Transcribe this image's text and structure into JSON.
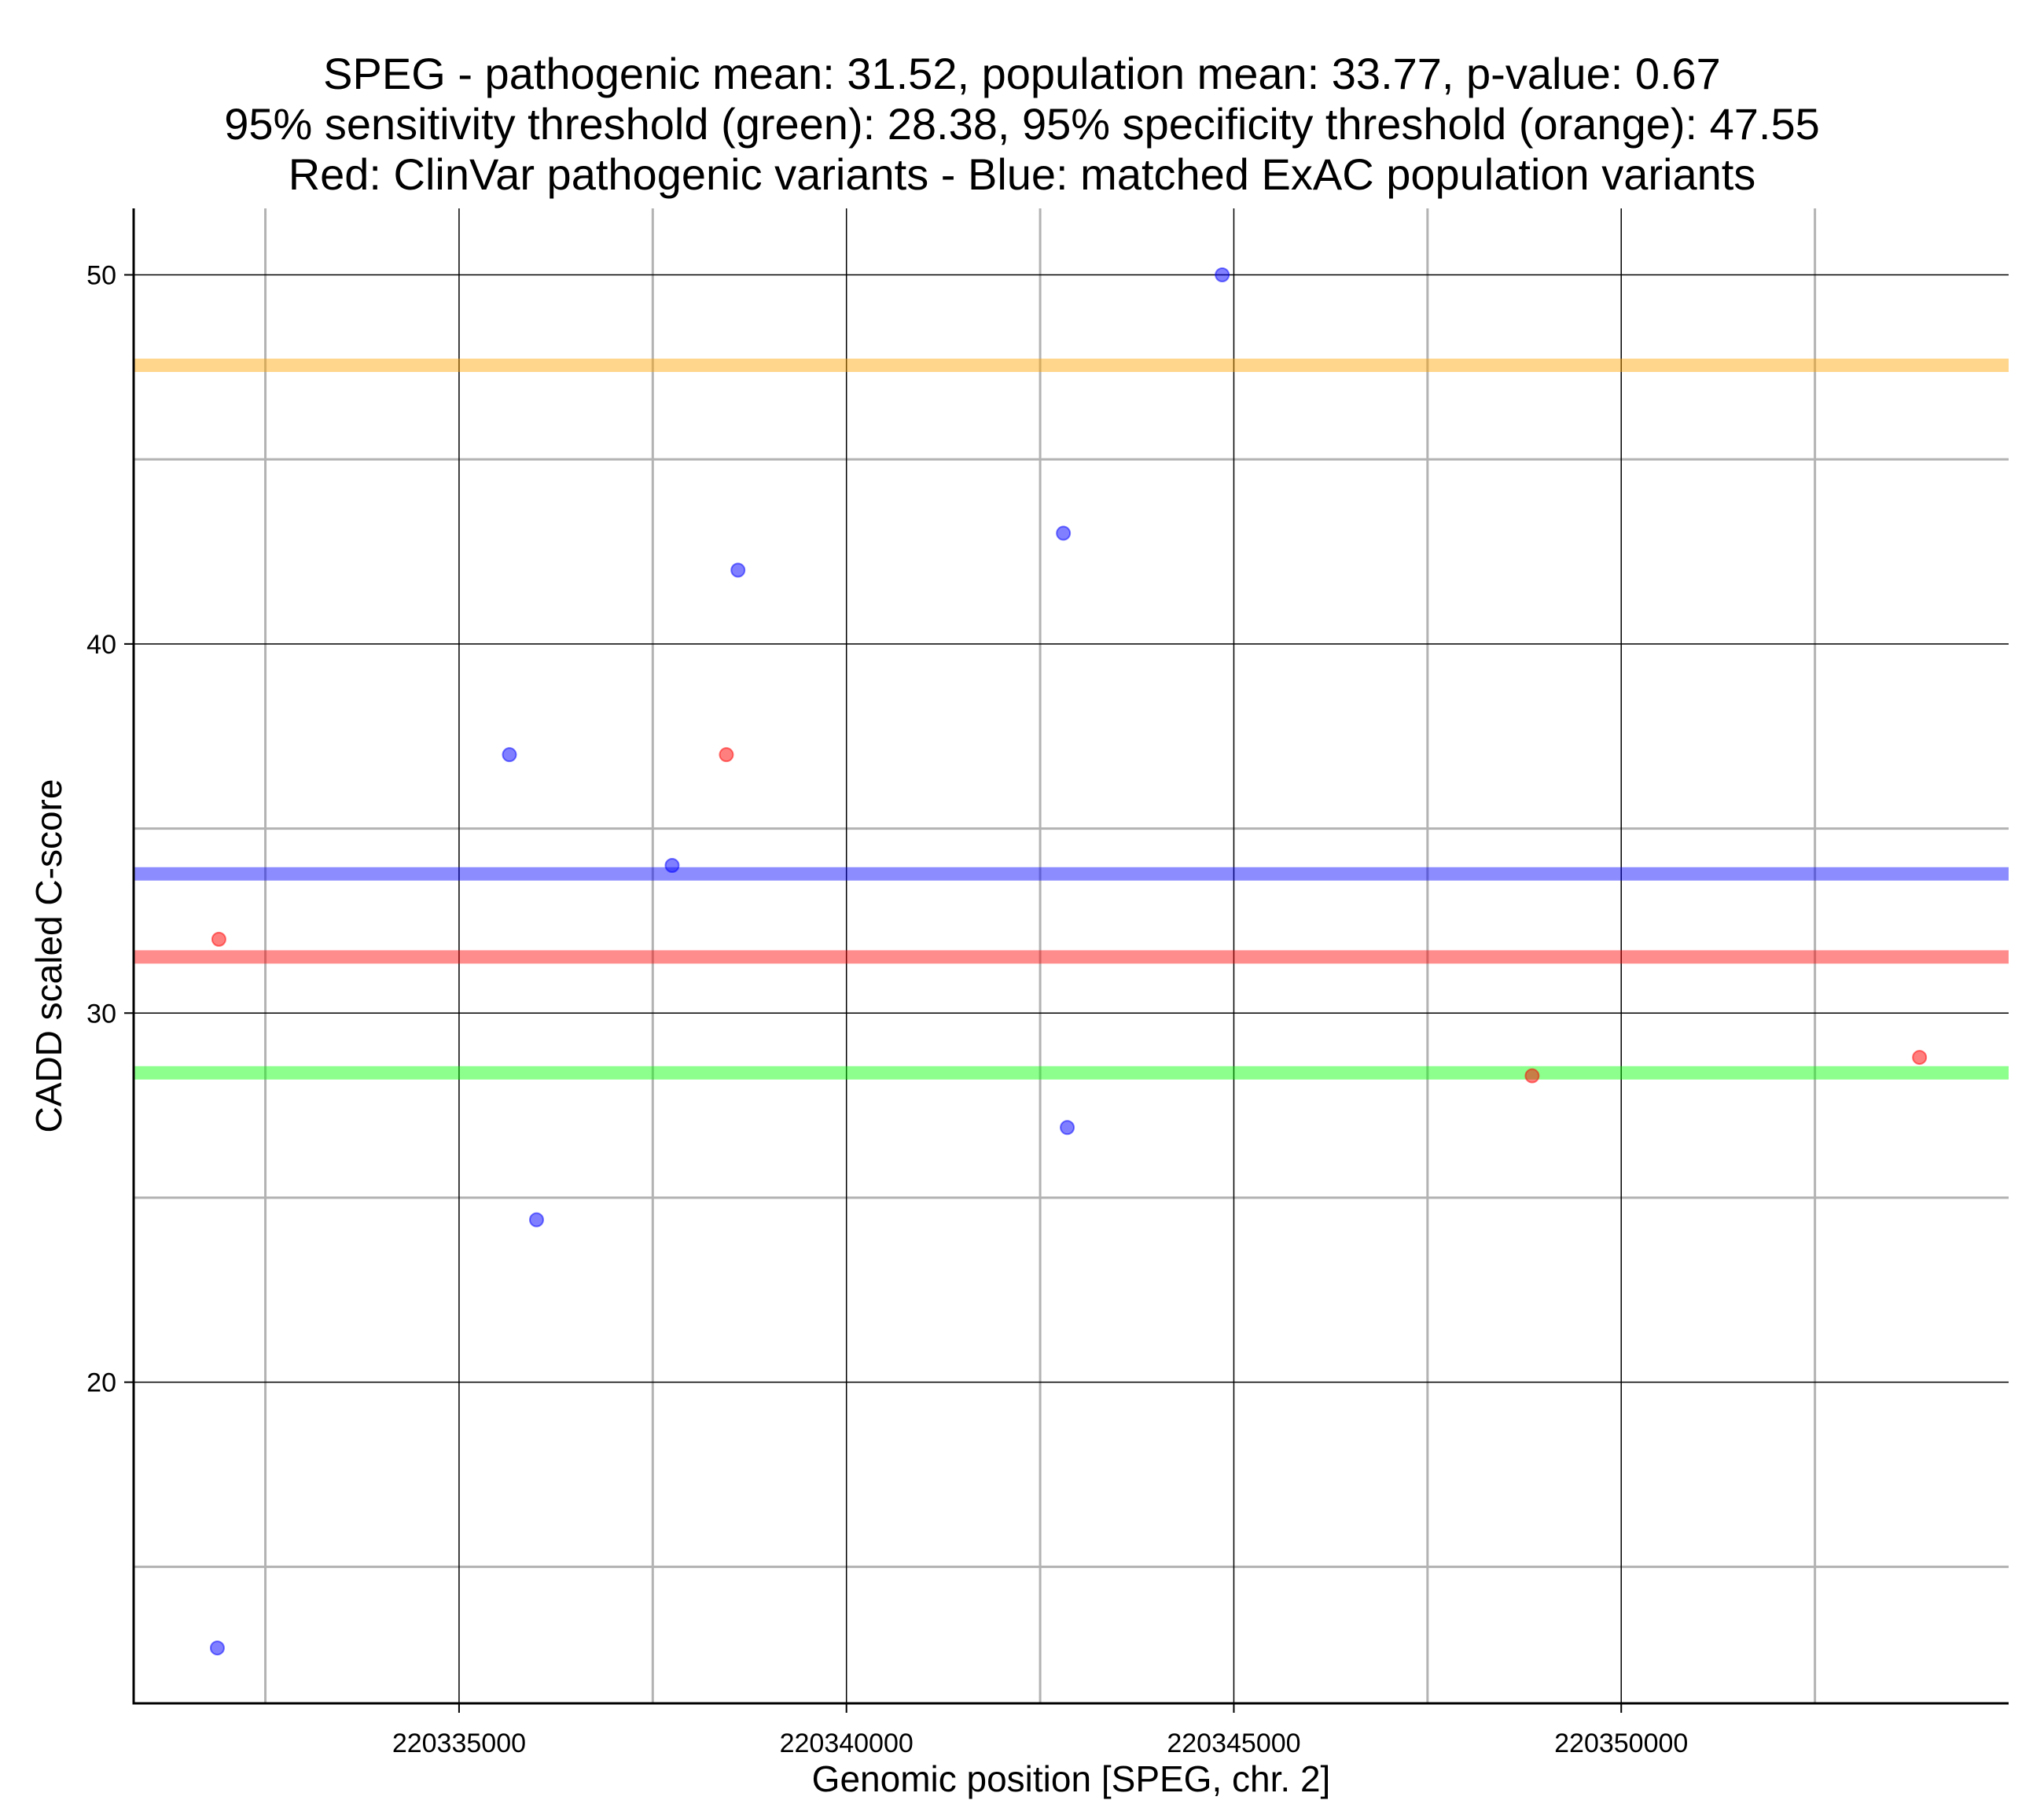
{
  "chart_data": {
    "type": "scatter",
    "title_lines": [
      "SPEG - pathogenic mean: 31.52, population mean: 33.77, p-value: 0.67",
      "95% sensitivity threshold (green): 28.38, 95% specificity threshold (orange): 47.55",
      "Red: ClinVar pathogenic variants - Blue: matched ExAC population variants"
    ],
    "xlabel": "Genomic position [SPEG, chr. 2]",
    "ylabel": "CADD scaled C-score",
    "xlim": [
      220330800,
      220355000
    ],
    "ylim": [
      11.3,
      51.8
    ],
    "x_ticks": [
      220335000,
      220340000,
      220345000,
      220350000
    ],
    "x_tick_labels": [
      "220335000",
      "220340000",
      "220345000",
      "220350000"
    ],
    "x_minor_gridlines": [
      220332500,
      220337500,
      220342500,
      220347500,
      220352500
    ],
    "y_ticks": [
      20,
      30,
      40,
      50
    ],
    "y_tick_labels": [
      "20",
      "30",
      "40",
      "50"
    ],
    "y_minor_gridlines": [
      15,
      25,
      35,
      45
    ],
    "grid": true,
    "series": [
      {
        "name": "ClinVar pathogenic variants",
        "color": "#ff0000",
        "points": [
          {
            "x": 220331900,
            "y": 32.0
          },
          {
            "x": 220338450,
            "y": 37.0
          },
          {
            "x": 220348850,
            "y": 28.3
          },
          {
            "x": 220353850,
            "y": 28.8
          }
        ]
      },
      {
        "name": "matched ExAC population variants",
        "color": "#0000ff",
        "points": [
          {
            "x": 220331880,
            "y": 12.8
          },
          {
            "x": 220335650,
            "y": 37.0
          },
          {
            "x": 220336000,
            "y": 24.4
          },
          {
            "x": 220337750,
            "y": 34.0
          },
          {
            "x": 220338600,
            "y": 42.0
          },
          {
            "x": 220342800,
            "y": 43.0
          },
          {
            "x": 220342850,
            "y": 26.9
          },
          {
            "x": 220344850,
            "y": 50.0
          }
        ]
      }
    ],
    "reference_lines": [
      {
        "name": "specificity-threshold",
        "label": "95% specificity threshold",
        "y": 47.55,
        "color": "#ffa500"
      },
      {
        "name": "population-mean",
        "label": "population mean",
        "y": 33.77,
        "color": "#0000ff"
      },
      {
        "name": "pathogenic-mean",
        "label": "pathogenic mean",
        "y": 31.52,
        "color": "#ff0000"
      },
      {
        "name": "sensitivity-threshold",
        "label": "95% sensitivity threshold",
        "y": 28.38,
        "color": "#00ff00"
      }
    ]
  }
}
